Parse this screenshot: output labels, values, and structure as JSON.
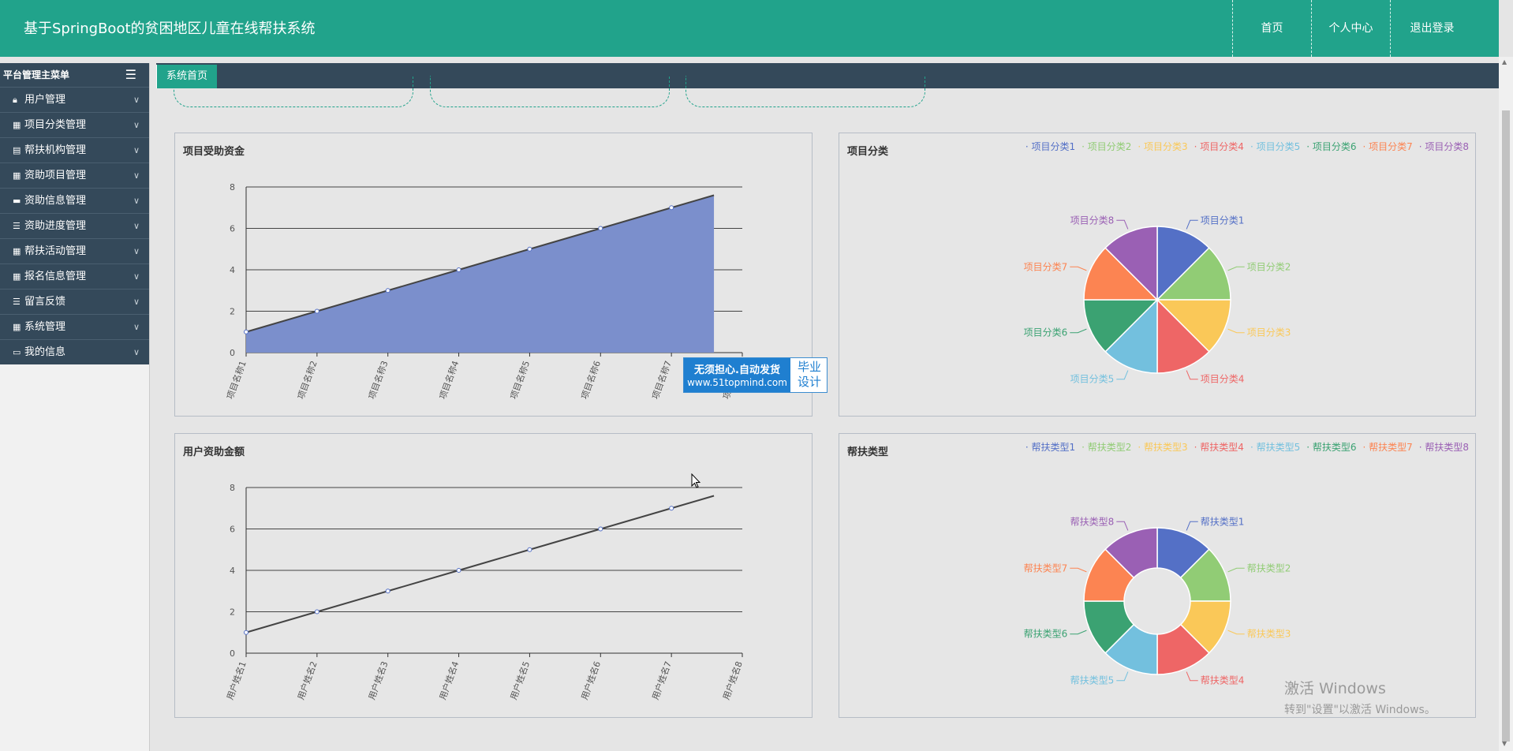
{
  "header": {
    "title": "基于SpringBoot的贫困地区儿童在线帮扶系统",
    "nav": [
      "首页",
      "个人中心",
      "退出登录"
    ]
  },
  "sidebar": {
    "heading": "平台管理主菜单",
    "items": [
      {
        "label": "用户管理",
        "icon": "lock-icon"
      },
      {
        "label": "项目分类管理",
        "icon": "grid-icon"
      },
      {
        "label": "帮扶机构管理",
        "icon": "clipboard-icon"
      },
      {
        "label": "资助项目管理",
        "icon": "table-icon"
      },
      {
        "label": "资助信息管理",
        "icon": "monitor-icon"
      },
      {
        "label": "资助进度管理",
        "icon": "list-icon"
      },
      {
        "label": "帮扶活动管理",
        "icon": "grid-icon"
      },
      {
        "label": "报名信息管理",
        "icon": "grid-icon"
      },
      {
        "label": "留言反馈",
        "icon": "list-icon"
      },
      {
        "label": "系统管理",
        "icon": "grid-icon"
      },
      {
        "label": "我的信息",
        "icon": "card-icon"
      }
    ]
  },
  "tabs": [
    "系统首页"
  ],
  "colors": {
    "primary": "#21a38b",
    "sidebar": "#34495a",
    "palette": [
      "#5470c6",
      "#91cc75",
      "#fac858",
      "#ee6666",
      "#73c0de",
      "#3ba272",
      "#fc8452",
      "#9a60b4"
    ]
  },
  "watermark": {
    "line1": "无须担心.自动发货",
    "line2": "www.51topmind.com",
    "side1": "毕业",
    "side2": "设计"
  },
  "windows_activation": {
    "line1": "激活 Windows",
    "line2": "转到\"设置\"以激活 Windows。"
  },
  "chart_data": [
    {
      "type": "area",
      "title": "项目受助资金",
      "categories": [
        "项目名称1",
        "项目名称2",
        "项目名称3",
        "项目名称4",
        "项目名称5",
        "项目名称6",
        "项目名称7",
        "项目名称8"
      ],
      "values": [
        1,
        2,
        3,
        4,
        5,
        6,
        7,
        8
      ],
      "ylim": [
        0,
        8
      ],
      "yticks": [
        "0",
        "2",
        "4",
        "6",
        "8"
      ],
      "grid": true
    },
    {
      "type": "pie",
      "title": "项目分类",
      "categories": [
        "项目分类1",
        "项目分类2",
        "项目分类3",
        "项目分类4",
        "项目分类5",
        "项目分类6",
        "项目分类7",
        "项目分类8"
      ],
      "values": [
        1,
        1,
        1,
        1,
        1,
        1,
        1,
        1
      ],
      "legend": "top-right"
    },
    {
      "type": "line",
      "title": "用户资助金额",
      "categories": [
        "用户姓名1",
        "用户姓名2",
        "用户姓名3",
        "用户姓名4",
        "用户姓名5",
        "用户姓名6",
        "用户姓名7",
        "用户姓名8"
      ],
      "values": [
        1,
        2,
        3,
        4,
        5,
        6,
        7,
        8
      ],
      "ylim": [
        0,
        8
      ],
      "yticks": [
        "0",
        "2",
        "4",
        "6",
        "8"
      ],
      "grid": true
    },
    {
      "type": "pie",
      "title": "帮扶类型",
      "categories": [
        "帮扶类型1",
        "帮扶类型2",
        "帮扶类型3",
        "帮扶类型4",
        "帮扶类型5",
        "帮扶类型6",
        "帮扶类型7",
        "帮扶类型8"
      ],
      "values": [
        1,
        1,
        1,
        1,
        1,
        1,
        1,
        1
      ],
      "legend": "top-right",
      "donut": true
    }
  ]
}
